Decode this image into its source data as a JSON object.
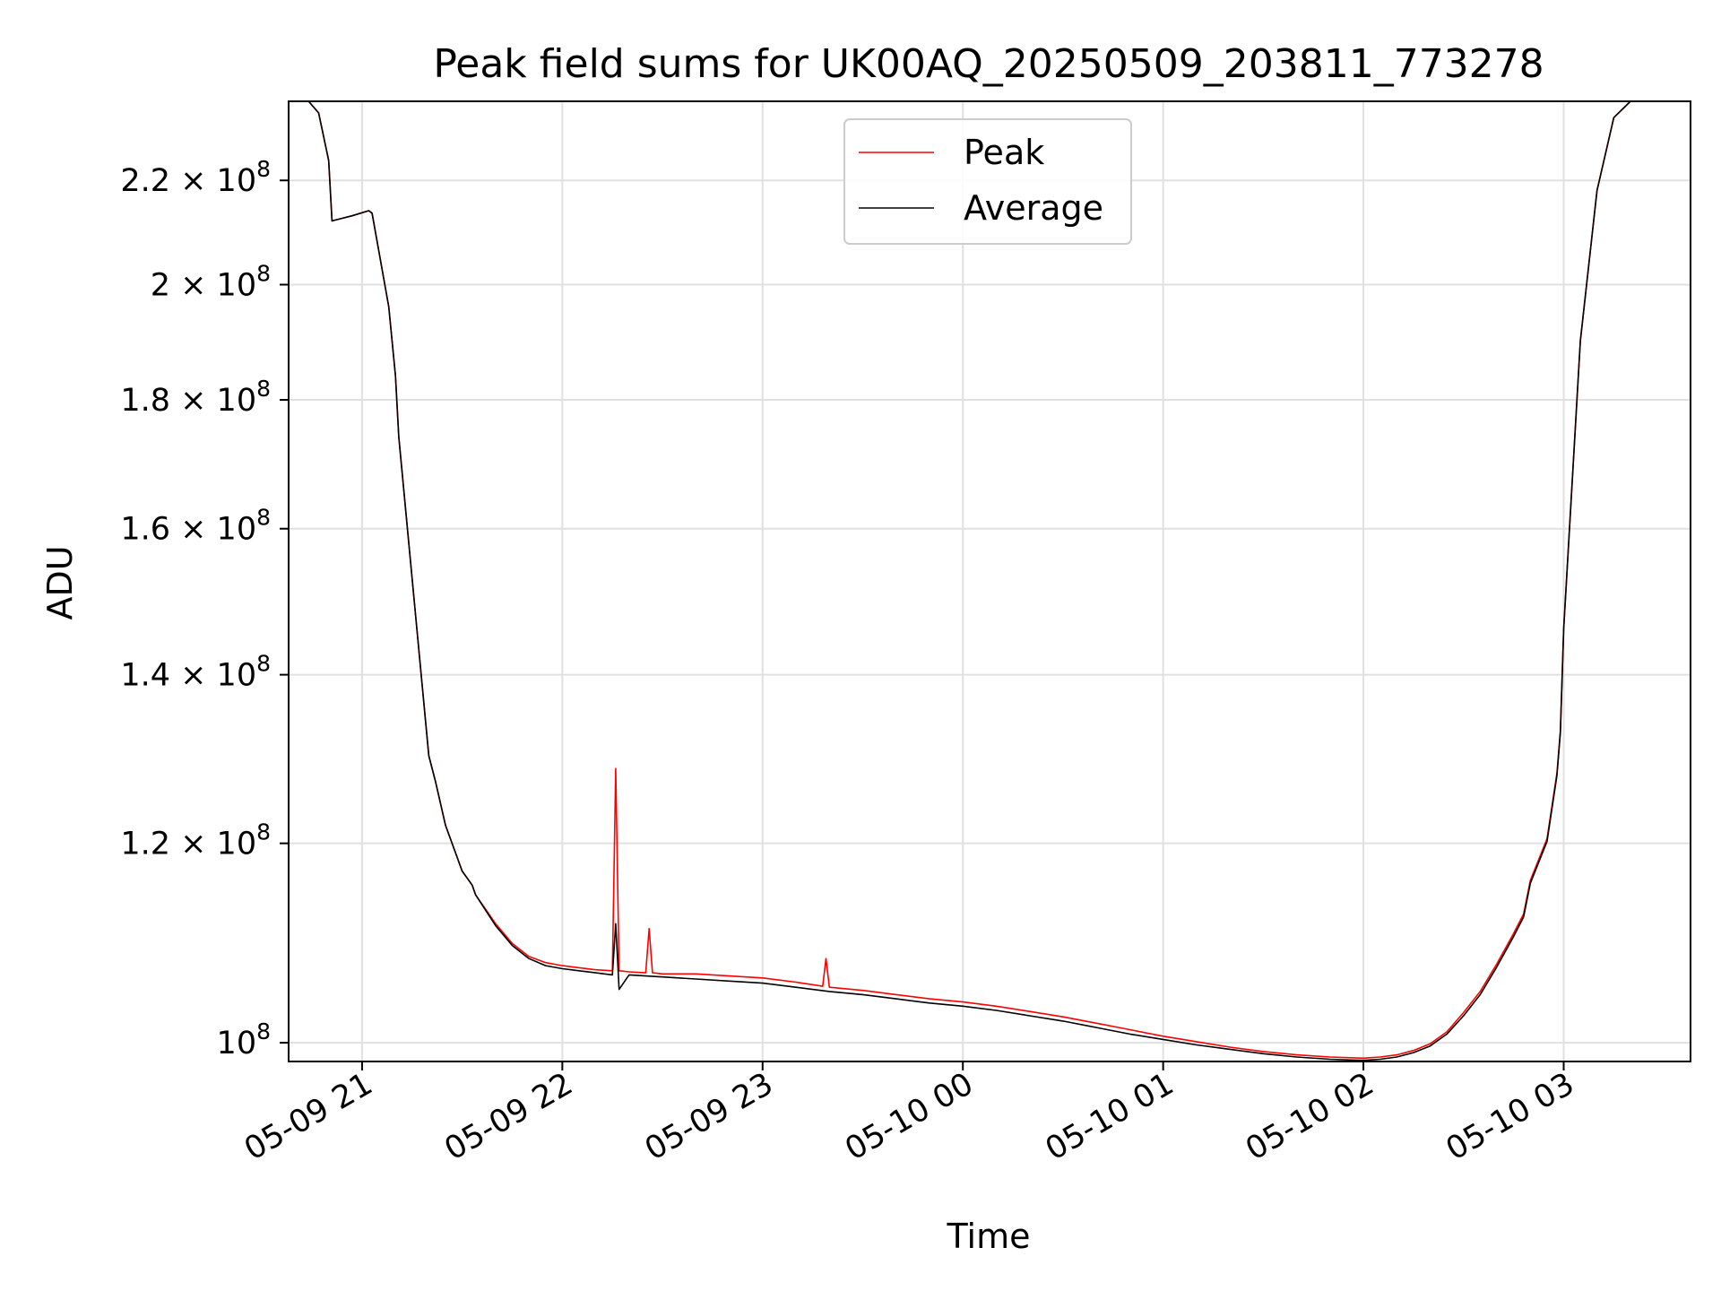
{
  "chart_data": {
    "type": "line",
    "title": "Peak field sums for UK00AQ_20250509_203811_773278",
    "xlabel": "Time",
    "ylabel": "ADU",
    "x_axis_type": "datetime",
    "y_scale": "log",
    "xlim": [
      "2025-05-09 20:38",
      "2025-05-10 03:38"
    ],
    "ylim": [
      98300000,
      236500000
    ],
    "x_ticks": [
      {
        "value": "2025-05-09 21:00",
        "label": "05-09 21"
      },
      {
        "value": "2025-05-09 22:00",
        "label": "05-09 22"
      },
      {
        "value": "2025-05-09 23:00",
        "label": "05-09 23"
      },
      {
        "value": "2025-05-10 00:00",
        "label": "05-10 00"
      },
      {
        "value": "2025-05-10 01:00",
        "label": "05-10 01"
      },
      {
        "value": "2025-05-10 02:00",
        "label": "05-10 02"
      },
      {
        "value": "2025-05-10 03:00",
        "label": "05-10 03"
      }
    ],
    "y_ticks": [
      {
        "value": 100000000,
        "mantissa": "",
        "exponent": "8"
      },
      {
        "value": 120000000,
        "mantissa": "1.2",
        "exponent": "8"
      },
      {
        "value": 140000000,
        "mantissa": "1.4",
        "exponent": "8"
      },
      {
        "value": 160000000,
        "mantissa": "1.6",
        "exponent": "8"
      },
      {
        "value": 180000000,
        "mantissa": "1.8",
        "exponent": "8"
      },
      {
        "value": 200000000,
        "mantissa": "2",
        "exponent": "8"
      },
      {
        "value": 220000000,
        "mantissa": "2.2",
        "exponent": "8"
      }
    ],
    "grid": true,
    "legend_position": "top-center",
    "series": [
      {
        "name": "Peak",
        "color": "#ff0000",
        "x": [
          "2025-05-09 20:38",
          "2025-05-09 20:44",
          "2025-05-09 20:47",
          "2025-05-09 20:50",
          "2025-05-09 20:51",
          "2025-05-09 20:57",
          "2025-05-09 21:02",
          "2025-05-09 21:03",
          "2025-05-09 21:08",
          "2025-05-09 21:10",
          "2025-05-09 21:11",
          "2025-05-09 21:16",
          "2025-05-09 21:20",
          "2025-05-09 21:22",
          "2025-05-09 21:25",
          "2025-05-09 21:30",
          "2025-05-09 21:33",
          "2025-05-09 21:34",
          "2025-05-09 21:40",
          "2025-05-09 21:45",
          "2025-05-09 21:50",
          "2025-05-09 21:55",
          "2025-05-09 22:00",
          "2025-05-09 22:05",
          "2025-05-09 22:10",
          "2025-05-09 22:15",
          "2025-05-09 22:16",
          "2025-05-09 22:17",
          "2025-05-09 22:20",
          "2025-05-09 22:25",
          "2025-05-09 22:26",
          "2025-05-09 22:27",
          "2025-05-09 22:30",
          "2025-05-09 22:40",
          "2025-05-09 22:50",
          "2025-05-09 23:00",
          "2025-05-09 23:10",
          "2025-05-09 23:18",
          "2025-05-09 23:19",
          "2025-05-09 23:20",
          "2025-05-09 23:30",
          "2025-05-09 23:40",
          "2025-05-09 23:50",
          "2025-05-10 00:00",
          "2025-05-10 00:10",
          "2025-05-10 00:20",
          "2025-05-10 00:30",
          "2025-05-10 00:40",
          "2025-05-10 00:50",
          "2025-05-10 01:00",
          "2025-05-10 01:10",
          "2025-05-10 01:20",
          "2025-05-10 01:30",
          "2025-05-10 01:40",
          "2025-05-10 01:50",
          "2025-05-10 02:00",
          "2025-05-10 02:05",
          "2025-05-10 02:10",
          "2025-05-10 02:15",
          "2025-05-10 02:20",
          "2025-05-10 02:25",
          "2025-05-10 02:30",
          "2025-05-10 02:35",
          "2025-05-10 02:40",
          "2025-05-10 02:45",
          "2025-05-10 02:48",
          "2025-05-10 02:50",
          "2025-05-10 02:55",
          "2025-05-10 02:58",
          "2025-05-10 02:59",
          "2025-05-10 03:00",
          "2025-05-10 03:05",
          "2025-05-10 03:10",
          "2025-05-10 03:15",
          "2025-05-10 03:20",
          "2025-05-10 03:25",
          "2025-05-10 03:38"
        ],
        "y": [
          236500000,
          236500000,
          234000000,
          224000000,
          212000000,
          213000000,
          214000000,
          213500000,
          196000000,
          184000000,
          174000000,
          148000000,
          130000000,
          127000000,
          122000000,
          117000000,
          115500000,
          114500000,
          111500000,
          109500000,
          108200000,
          107600000,
          107300000,
          107100000,
          106900000,
          106800000,
          128500000,
          106800000,
          106700000,
          106600000,
          111000000,
          106600000,
          106500000,
          106500000,
          106300000,
          106100000,
          105700000,
          105300000,
          108000000,
          105200000,
          104900000,
          104500000,
          104100000,
          103800000,
          103400000,
          102900000,
          102400000,
          101800000,
          101200000,
          100600000,
          100100000,
          99600000,
          99200000,
          98900000,
          98700000,
          98600000,
          98700000,
          98900000,
          99300000,
          99900000,
          101000000,
          102800000,
          104800000,
          107500000,
          110500000,
          112500000,
          116000000,
          120500000,
          128000000,
          133000000,
          146000000,
          190000000,
          218000000,
          233000000,
          236500000,
          236500000,
          236500000
        ]
      },
      {
        "name": "Average",
        "color": "#000000",
        "x": [
          "2025-05-09 20:38",
          "2025-05-09 20:44",
          "2025-05-09 20:47",
          "2025-05-09 20:50",
          "2025-05-09 20:51",
          "2025-05-09 20:57",
          "2025-05-09 21:02",
          "2025-05-09 21:03",
          "2025-05-09 21:08",
          "2025-05-09 21:10",
          "2025-05-09 21:11",
          "2025-05-09 21:16",
          "2025-05-09 21:20",
          "2025-05-09 21:22",
          "2025-05-09 21:25",
          "2025-05-09 21:30",
          "2025-05-09 21:33",
          "2025-05-09 21:34",
          "2025-05-09 21:40",
          "2025-05-09 21:45",
          "2025-05-09 21:50",
          "2025-05-09 21:55",
          "2025-05-09 22:00",
          "2025-05-09 22:05",
          "2025-05-09 22:10",
          "2025-05-09 22:15",
          "2025-05-09 22:16",
          "2025-05-09 22:17",
          "2025-05-09 22:20",
          "2025-05-09 22:25",
          "2025-05-09 22:30",
          "2025-05-09 22:40",
          "2025-05-09 22:50",
          "2025-05-09 23:00",
          "2025-05-09 23:10",
          "2025-05-09 23:20",
          "2025-05-09 23:30",
          "2025-05-09 23:40",
          "2025-05-09 23:50",
          "2025-05-10 00:00",
          "2025-05-10 00:10",
          "2025-05-10 00:20",
          "2025-05-10 00:30",
          "2025-05-10 00:40",
          "2025-05-10 00:50",
          "2025-05-10 01:00",
          "2025-05-10 01:10",
          "2025-05-10 01:20",
          "2025-05-10 01:30",
          "2025-05-10 01:40",
          "2025-05-10 01:50",
          "2025-05-10 02:00",
          "2025-05-10 02:05",
          "2025-05-10 02:10",
          "2025-05-10 02:15",
          "2025-05-10 02:20",
          "2025-05-10 02:25",
          "2025-05-10 02:30",
          "2025-05-10 02:35",
          "2025-05-10 02:40",
          "2025-05-10 02:45",
          "2025-05-10 02:48",
          "2025-05-10 02:50",
          "2025-05-10 02:55",
          "2025-05-10 02:58",
          "2025-05-10 02:59",
          "2025-05-10 03:00",
          "2025-05-10 03:05",
          "2025-05-10 03:10",
          "2025-05-10 03:15",
          "2025-05-10 03:20",
          "2025-05-10 03:25",
          "2025-05-10 03:38"
        ],
        "y": [
          236500000,
          236500000,
          234000000,
          224000000,
          212000000,
          213000000,
          214000000,
          213500000,
          196000000,
          184000000,
          174000000,
          148000000,
          130000000,
          127000000,
          122000000,
          117000000,
          115500000,
          114500000,
          111300000,
          109300000,
          108000000,
          107300000,
          107000000,
          106800000,
          106600000,
          106400000,
          111500000,
          105000000,
          106400000,
          106300000,
          106200000,
          106000000,
          105800000,
          105600000,
          105200000,
          104800000,
          104500000,
          104100000,
          103700000,
          103400000,
          103000000,
          102500000,
          102000000,
          101400000,
          100800000,
          100300000,
          99800000,
          99400000,
          99000000,
          98700000,
          98500000,
          98400000,
          98500000,
          98700000,
          99100000,
          99700000,
          100800000,
          102500000,
          104500000,
          107200000,
          110200000,
          112200000,
          115700000,
          120200000,
          127700000,
          132800000,
          146000000,
          190000000,
          218000000,
          233000000,
          236500000,
          236500000,
          236500000
        ]
      }
    ]
  }
}
